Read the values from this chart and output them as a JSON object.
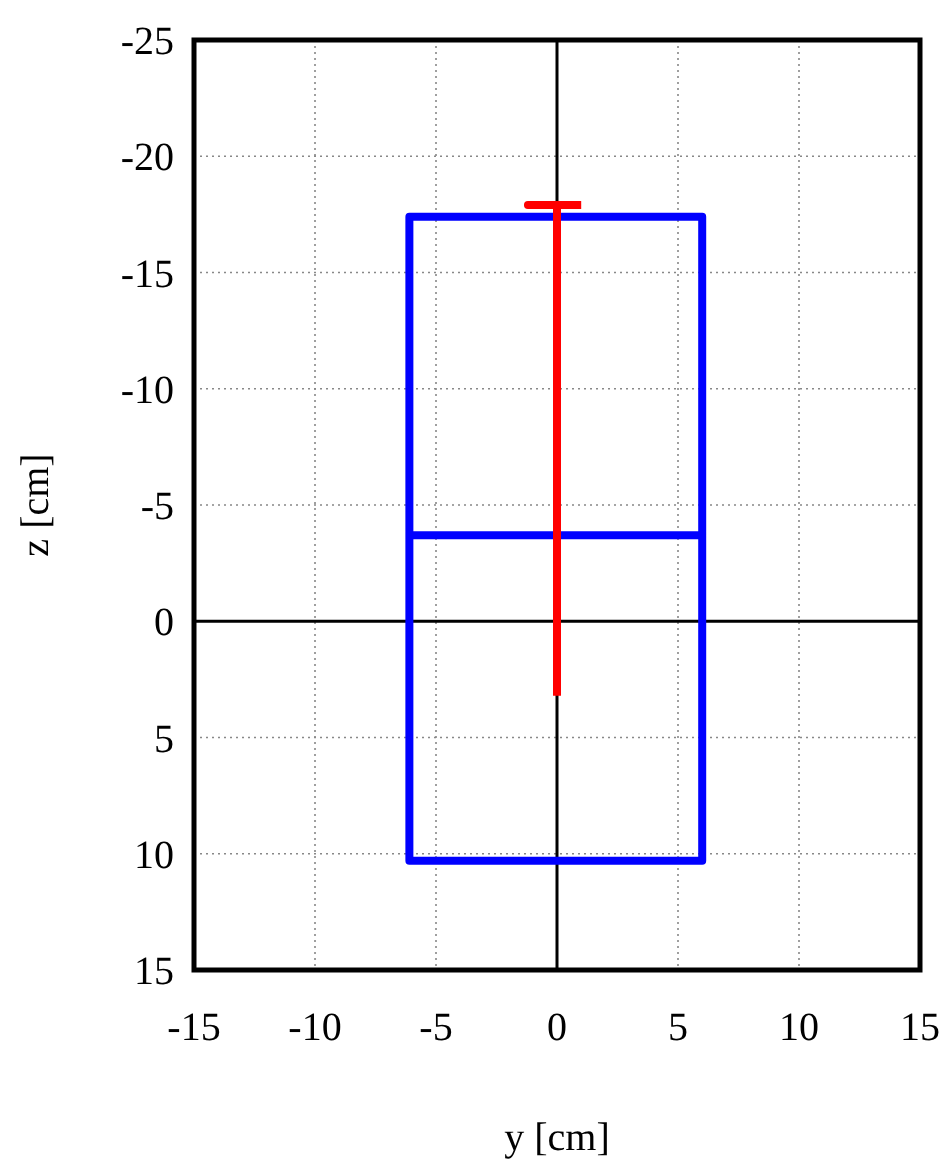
{
  "chart_data": {
    "type": "line",
    "xlabel": "y [cm]",
    "ylabel": "z [cm]",
    "xlim": [
      -15,
      15
    ],
    "xticks": [
      -15,
      -10,
      -5,
      0,
      5,
      10,
      15
    ],
    "ylim": [
      15,
      -25
    ],
    "yticks": [
      15,
      10,
      5,
      0,
      -5,
      -10,
      -15,
      -20,
      -25
    ],
    "grid": true,
    "marker": "none",
    "line_style": "solid",
    "series": [
      {
        "color": "#0000ff",
        "x": [
          -6.1,
          6.0,
          6.0,
          -6.1,
          -6.1,
          6.0,
          6.0
        ],
        "values": [
          -3.7,
          -3.7,
          -17.4,
          -17.4,
          10.3,
          10.3,
          -3.7
        ]
      },
      {
        "color": "#ff0000",
        "x": [
          0,
          0,
          -1.2,
          1.0
        ],
        "values": [
          3.2,
          -17.9,
          -17.9,
          -17.9
        ]
      }
    ]
  }
}
